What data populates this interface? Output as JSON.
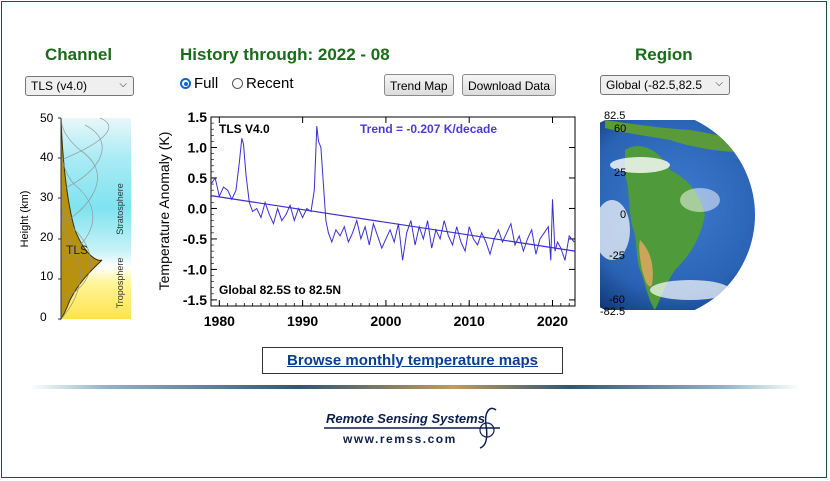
{
  "channel": {
    "heading": "Channel",
    "select_value": "TLS (v4.0)"
  },
  "history": {
    "heading": "History through: 2022 - 08",
    "radio_full": "Full",
    "radio_recent": "Recent",
    "selected_radio": "Full"
  },
  "buttons": {
    "trend_map": "Trend Map",
    "download_data": "Download Data"
  },
  "region": {
    "heading": "Region",
    "select_value": "Global (-82.5,82.5"
  },
  "height_profile": {
    "ylabel": "Height  (km)",
    "ticks": [
      "0",
      "10",
      "20",
      "30",
      "40",
      "50"
    ],
    "channel_label": "TLS",
    "troposphere_label": "Troposphere",
    "stratosphere_label": "Stratosphere",
    "colors": {
      "troposphere": "#ffe34d",
      "stratosphere": "#8ee8f2",
      "weighting_fill": "#b8920f"
    }
  },
  "chart_data": {
    "type": "line",
    "title": "TLS V4.0",
    "trend_label": "Trend = -0.207 K/decade",
    "region_label": "Global  82.5S to  82.5N",
    "ylabel": "Temperature Anomaly (K)",
    "xlim": [
      1979,
      2022.7
    ],
    "ylim": [
      -1.6,
      1.5
    ],
    "x_ticks": [
      "1980",
      "1990",
      "2000",
      "2010",
      "2020"
    ],
    "y_ticks": [
      "1.5",
      "1.0",
      "0.5",
      "0.0",
      "-0.5",
      "-1.0",
      "-1.5"
    ],
    "series": [
      {
        "color": "#3a2fd0",
        "x": [
          1979.0,
          1979.5,
          1980.0,
          1980.5,
          1981.0,
          1981.5,
          1982.0,
          1982.4,
          1982.7,
          1982.9,
          1983.2,
          1983.6,
          1984.0,
          1984.5,
          1985.0,
          1985.5,
          1986.0,
          1986.5,
          1987.0,
          1987.5,
          1988.0,
          1988.5,
          1989.0,
          1989.5,
          1990.0,
          1990.5,
          1991.0,
          1991.4,
          1991.7,
          1991.9,
          1992.2,
          1992.5,
          1992.8,
          1993.1,
          1993.5,
          1994.0,
          1994.5,
          1995.0,
          1995.5,
          1996.0,
          1996.5,
          1997.0,
          1997.5,
          1998.0,
          1998.5,
          1999.0,
          1999.5,
          2000.0,
          2000.5,
          2001.0,
          2001.5,
          2002.0,
          2002.5,
          2003.0,
          2003.5,
          2004.0,
          2004.5,
          2005.0,
          2005.5,
          2006.0,
          2006.5,
          2007.0,
          2007.5,
          2008.0,
          2008.5,
          2009.0,
          2009.5,
          2010.0,
          2010.5,
          2011.0,
          2011.5,
          2012.0,
          2012.5,
          2013.0,
          2013.5,
          2014.0,
          2014.5,
          2015.0,
          2015.5,
          2016.0,
          2016.5,
          2017.0,
          2017.5,
          2018.0,
          2018.5,
          2019.0,
          2019.5,
          2019.8,
          2020.0,
          2020.3,
          2020.6,
          2021.0,
          2021.5,
          2022.0,
          2022.6
        ],
        "values": [
          0.4,
          0.5,
          0.2,
          0.35,
          0.3,
          0.15,
          0.3,
          0.75,
          1.15,
          1.05,
          0.55,
          0.1,
          -0.05,
          0.0,
          -0.15,
          0.1,
          -0.1,
          -0.25,
          0.0,
          -0.2,
          -0.1,
          0.05,
          -0.2,
          0.0,
          -0.15,
          0.0,
          -0.05,
          0.3,
          1.35,
          1.1,
          1.0,
          0.4,
          -0.2,
          -0.4,
          -0.55,
          -0.35,
          -0.45,
          -0.3,
          -0.55,
          -0.4,
          -0.2,
          -0.5,
          -0.3,
          -0.6,
          -0.25,
          -0.45,
          -0.65,
          -0.5,
          -0.35,
          -0.55,
          -0.25,
          -0.85,
          -0.4,
          -0.2,
          -0.6,
          -0.3,
          -0.5,
          -0.2,
          -0.65,
          -0.35,
          -0.5,
          -0.2,
          -0.45,
          -0.6,
          -0.3,
          -0.55,
          -0.7,
          -0.3,
          -0.5,
          -0.6,
          -0.4,
          -0.55,
          -0.75,
          -0.5,
          -0.35,
          -0.55,
          -0.4,
          -0.25,
          -0.6,
          -0.45,
          -0.7,
          -0.5,
          -0.35,
          -0.75,
          -0.5,
          -0.4,
          -0.3,
          -0.85,
          0.15,
          -0.7,
          -0.55,
          -0.65,
          -0.85,
          -0.45,
          -0.55
        ]
      }
    ],
    "trend_line": {
      "x": [
        1979,
        2022.7
      ],
      "values": [
        0.21,
        -0.7
      ]
    }
  },
  "globe": {
    "lat_labels": [
      "82.5",
      "60",
      "25",
      "0",
      "-25",
      "-60",
      "-82.5"
    ],
    "colors": {
      "ocean": "#2a63b4",
      "land": "#4f9a3a",
      "desert": "#caa55a",
      "cloud": "#ffffff"
    }
  },
  "browse_link": "Browse monthly temperature maps",
  "footer": {
    "org": "Remote Sensing Systems",
    "url": "www.remss.com"
  }
}
